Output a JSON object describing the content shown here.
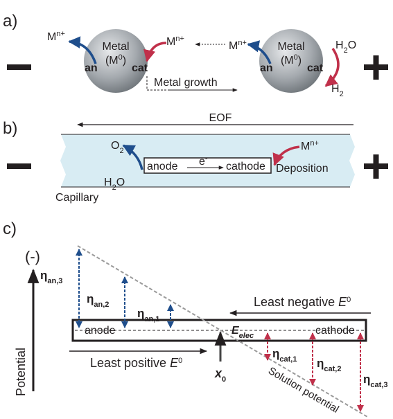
{
  "panel_a": {
    "label": "a)",
    "ion": {
      "symbol": "M",
      "charge": "n+"
    },
    "particle": {
      "name": "Metal",
      "formula": "(M",
      "oxidation": "0",
      "close": ")",
      "anode": "an",
      "cathode": "cat"
    },
    "growth": "Metal growth",
    "water": {
      "h": "H",
      "sub": "2",
      "o": "O"
    },
    "hydrogen": {
      "h": "H",
      "sub": "2"
    }
  },
  "panel_b": {
    "label": "b)",
    "flow": "EOF",
    "oxygen": {
      "o": "O",
      "sub": "2"
    },
    "water": {
      "h": "H",
      "sub": "2",
      "o": "O"
    },
    "anode": "anode",
    "electron": {
      "e": "e",
      "charge": "-"
    },
    "cathode": "cathode",
    "ion": {
      "symbol": "M",
      "charge": "n+"
    },
    "process": "Deposition",
    "capillary": "Capillary"
  },
  "panel_c": {
    "label": "c)",
    "polarity": "(-)",
    "axis": "Potential",
    "eta_an": [
      {
        "symbol": "η",
        "sub": "an,3"
      },
      {
        "symbol": "η",
        "sub": "an,2"
      },
      {
        "symbol": "η",
        "sub": "an,1"
      }
    ],
    "eta_cat": [
      {
        "symbol": "η",
        "sub": "cat,1"
      },
      {
        "symbol": "η",
        "sub": "cat,2"
      },
      {
        "symbol": "η",
        "sub": "cat,3"
      }
    ],
    "least_negative": {
      "text": "Least negative",
      "e": "E",
      "sup": "0"
    },
    "anode": "anode",
    "cathode": "cathode",
    "e_elec": {
      "e": "E",
      "sub": "elec"
    },
    "least_positive": {
      "text": "Least positive",
      "e": "E",
      "sup": "0"
    },
    "x0": {
      "x": "x",
      "sub": "0"
    },
    "solution": "Solution potential"
  }
}
